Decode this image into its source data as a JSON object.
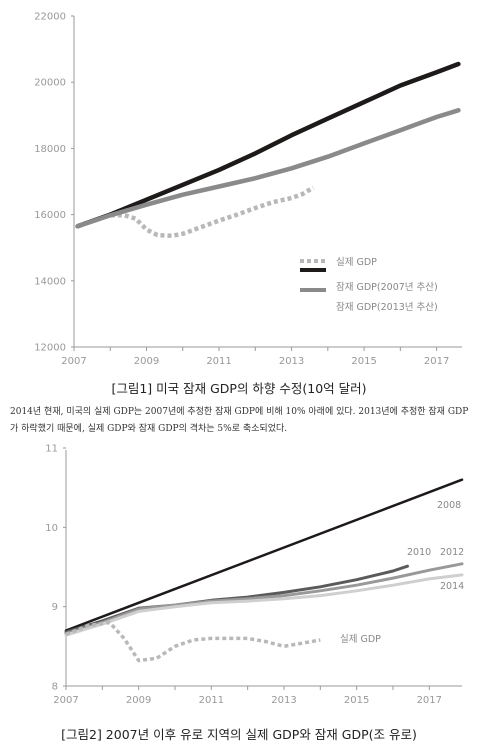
{
  "figure1": {
    "caption": "[그림1] 미국 잠재 GDP의 하향 수정(10억 달러)",
    "chart_data": {
      "type": "line",
      "title": "",
      "xlabel": "",
      "ylabel": "",
      "xlim": [
        2007,
        2017.7
      ],
      "ylim": [
        12000,
        22000
      ],
      "x_ticks": [
        "2007",
        "2009",
        "2011",
        "2013",
        "2015",
        "2017"
      ],
      "y_ticks": [
        "12000",
        "14000",
        "16000",
        "18000",
        "20000",
        "22000"
      ],
      "legend_position": "center-right",
      "series": [
        {
          "name": "실제 GDP",
          "style": "dotted",
          "color": "#b8b8b8",
          "x": [
            2007.1,
            2007.5,
            2008.0,
            2008.4,
            2008.7,
            2009.0,
            2009.3,
            2009.7,
            2010.0,
            2010.5,
            2011.0,
            2011.5,
            2012.0,
            2012.5,
            2013.0,
            2013.3,
            2013.6
          ],
          "y": [
            15650,
            15800,
            15980,
            15980,
            15880,
            15550,
            15380,
            15360,
            15420,
            15620,
            15820,
            16000,
            16200,
            16380,
            16500,
            16620,
            16820
          ]
        },
        {
          "name": "잠재 GDP(2007년 추산)",
          "style": "solid",
          "color": "#1e1a1a",
          "x": [
            2007.1,
            2008,
            2009,
            2010,
            2011,
            2012,
            2013,
            2014,
            2015,
            2016,
            2017,
            2017.6
          ],
          "y": [
            15650,
            16000,
            16450,
            16900,
            17350,
            17850,
            18400,
            18900,
            19400,
            19900,
            20300,
            20550
          ]
        },
        {
          "name": "잠재 GDP(2013년 추산)",
          "style": "solid",
          "color": "#8a8a8a",
          "x": [
            2007.1,
            2008,
            2009,
            2010,
            2011,
            2012,
            2013,
            2014,
            2015,
            2016,
            2017,
            2017.6
          ],
          "y": [
            15650,
            15980,
            16300,
            16600,
            16850,
            17100,
            17400,
            17750,
            18150,
            18550,
            18950,
            19150
          ]
        }
      ]
    }
  },
  "description": "2014년 현재, 미국의 실제 GDP는 2007년에 추정한 잠재 GDP에 비해 10% 아래에 있다. 2013년에 추정한 잠재 GDP가 하락했기 때문에, 실제 GDP와 잠재 GDP의 격차는 5%로 축소되었다.",
  "figure2": {
    "caption": "[그림2] 2007년 이후 유로 지역의 실제 GDP와 잠재 GDP(조 유로)",
    "chart_data": {
      "type": "line",
      "title": "",
      "xlabel": "",
      "ylabel": "",
      "xlim": [
        2007,
        2017.9
      ],
      "ylim": [
        8,
        11
      ],
      "x_ticks": [
        "2007",
        "2009",
        "2011",
        "2013",
        "2015",
        "2017"
      ],
      "y_ticks": [
        "8",
        "9",
        "10",
        "11"
      ],
      "series": [
        {
          "name": "2008",
          "style": "solid",
          "color": "#1e1a1a",
          "x": [
            2007,
            2017.9
          ],
          "y": [
            8.7,
            10.6
          ]
        },
        {
          "name": "2010",
          "style": "solid",
          "color": "#5a5a5a",
          "x": [
            2007,
            2008,
            2009,
            2010,
            2011,
            2012,
            2013,
            2014,
            2015,
            2016,
            2016.4
          ],
          "y": [
            8.68,
            8.82,
            8.98,
            9.02,
            9.08,
            9.12,
            9.18,
            9.25,
            9.34,
            9.45,
            9.51
          ]
        },
        {
          "name": "2012",
          "style": "solid",
          "color": "#999999",
          "x": [
            2007,
            2008,
            2009,
            2010,
            2011,
            2012,
            2013,
            2014,
            2015,
            2016,
            2017,
            2017.9
          ],
          "y": [
            8.66,
            8.8,
            8.97,
            9.02,
            9.07,
            9.1,
            9.14,
            9.2,
            9.27,
            9.36,
            9.46,
            9.54
          ]
        },
        {
          "name": "2014",
          "style": "solid",
          "color": "#cfcfcf",
          "x": [
            2007,
            2008,
            2009,
            2010,
            2011,
            2012,
            2013,
            2014,
            2015,
            2016,
            2017,
            2017.9
          ],
          "y": [
            8.64,
            8.78,
            8.94,
            9.0,
            9.05,
            9.07,
            9.1,
            9.14,
            9.2,
            9.27,
            9.35,
            9.4
          ]
        },
        {
          "name": "실제 GDP",
          "style": "dotted",
          "color": "#b8b8b8",
          "x": [
            2007,
            2007.6,
            2008.2,
            2008.6,
            2009.0,
            2009.5,
            2010.0,
            2010.5,
            2011.0,
            2011.5,
            2012.0,
            2012.5,
            2013.0,
            2013.5,
            2014.0
          ],
          "y": [
            8.65,
            8.76,
            8.8,
            8.6,
            8.32,
            8.35,
            8.5,
            8.58,
            8.6,
            8.6,
            8.6,
            8.56,
            8.5,
            8.54,
            8.58
          ]
        }
      ]
    }
  }
}
